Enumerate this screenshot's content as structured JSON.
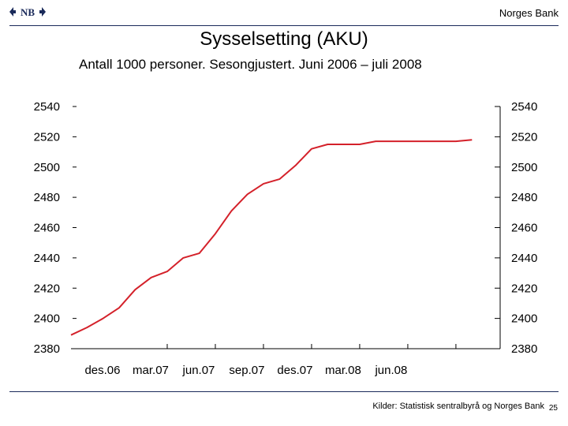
{
  "header": {
    "brand": "Norges Bank"
  },
  "chart_data": {
    "type": "line",
    "title": "Sysselsetting (AKU)",
    "subtitle": "Antall 1000 personer. Sesongjustert. Juni 2006 – juli 2008",
    "xlabel": "",
    "ylabel": "",
    "ylim": [
      2380,
      2540
    ],
    "yticks": [
      "2540",
      "2520",
      "2500",
      "2480",
      "2460",
      "2440",
      "2420",
      "2400",
      "2380"
    ],
    "categories": [
      "des.06",
      "mar.07",
      "jun.07",
      "sep.07",
      "des.07",
      "mar.08",
      "jun.08"
    ],
    "grid": false,
    "line_color": "#d4212a",
    "series": [
      {
        "x": [
          "jun.06",
          "jul.06",
          "aug.06",
          "sep.06",
          "okt.06",
          "nov.06",
          "des.06",
          "jan.07",
          "feb.07",
          "mar.07",
          "apr.07",
          "mai.07",
          "jun.07",
          "jul.07",
          "aug.07",
          "sep.07",
          "okt.07",
          "nov.07",
          "des.07",
          "jan.08",
          "feb.08",
          "mar.08",
          "apr.08",
          "mai.08",
          "jun.08",
          "jul.08"
        ],
        "values": [
          2389,
          2394,
          2400,
          2407,
          2419,
          2427,
          2431,
          2440,
          2443,
          2456,
          2471,
          2482,
          2489,
          2492,
          2501,
          2512,
          2515,
          2515,
          2515,
          2517,
          2517,
          2517,
          2517,
          2517,
          2517,
          2518
        ]
      }
    ]
  },
  "footer": {
    "source": "Kilder: Statistisk sentralbyrå og Norges Bank",
    "page": "25"
  }
}
